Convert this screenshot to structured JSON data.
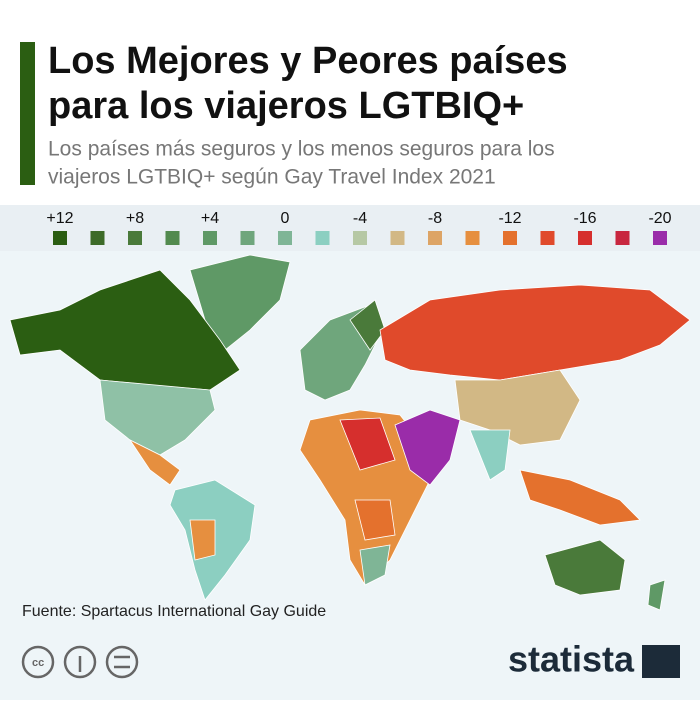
{
  "header": {
    "title": [
      "Los Mejores y Peores países",
      "para los viajeros LGTBIQ+"
    ],
    "subtitle": [
      "Los países más seguros y los menos seguros para los",
      "viajeros LGTBIQ+ según Gay Travel Index 2021"
    ]
  },
  "legend": {
    "labels": [
      "+12",
      "+8",
      "+4",
      "0",
      "-4",
      "-8",
      "-12",
      "-16",
      "-20"
    ],
    "colors": [
      "#2b5e12",
      "#3d6b28",
      "#4a7a3a",
      "#528a4e",
      "#5f9966",
      "#6fa67c",
      "#7fb596",
      "#8ccfc1",
      "#b6c8a4",
      "#d2b885",
      "#dda465",
      "#e68f3f",
      "#e4712d",
      "#e04a2b",
      "#d62f2d",
      "#c8273f",
      "#9a2ca9"
    ]
  },
  "footer": {
    "source": "Fuente: Spartacus International Gay Guide",
    "logo": "statista"
  }
}
